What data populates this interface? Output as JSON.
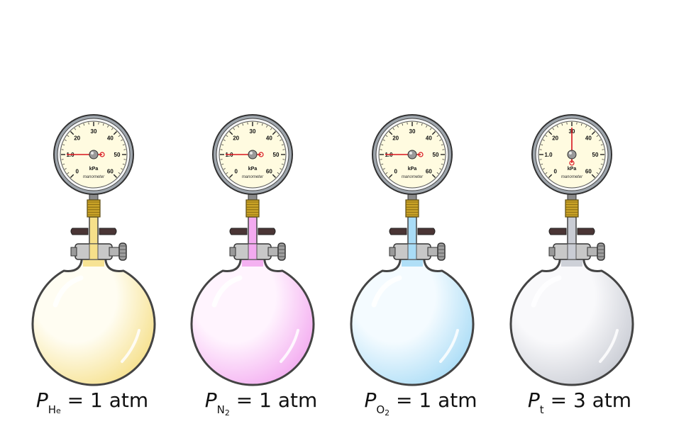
{
  "flasks": [
    {
      "id": "he",
      "p_symbol": "P",
      "subscript": "H",
      "subscript2": "e",
      "eq": " = 1 atm",
      "gas_color": "#f6e08a",
      "gas_light": "#fffdf2",
      "gauge_reading_kpa": 10
    },
    {
      "id": "n2",
      "p_symbol": "P",
      "subscript": "N",
      "subscript2": "2",
      "eq": " = 1 atm",
      "gas_color": "#f3aaf0",
      "gas_light": "#fff4fe",
      "gauge_reading_kpa": 10
    },
    {
      "id": "o2",
      "p_symbol": "P",
      "subscript": "O",
      "subscript2": "2",
      "eq": " = 1 atm",
      "gas_color": "#a9dcf6",
      "gas_light": "#f4fbff",
      "gauge_reading_kpa": 10
    },
    {
      "id": "total",
      "p_symbol": "P",
      "subscript": "t",
      "subscript2": "",
      "eq": " = 3 atm",
      "gas_color": "#c9ccd4",
      "gas_light": "#f9f9fb",
      "gauge_reading_kpa": 30
    }
  ],
  "gauge": {
    "ticks": [
      "0",
      "1.0",
      "20",
      "30",
      "40",
      "50",
      "60"
    ],
    "unit": "kPa",
    "brand": "manometer",
    "max_kpa": 60
  }
}
